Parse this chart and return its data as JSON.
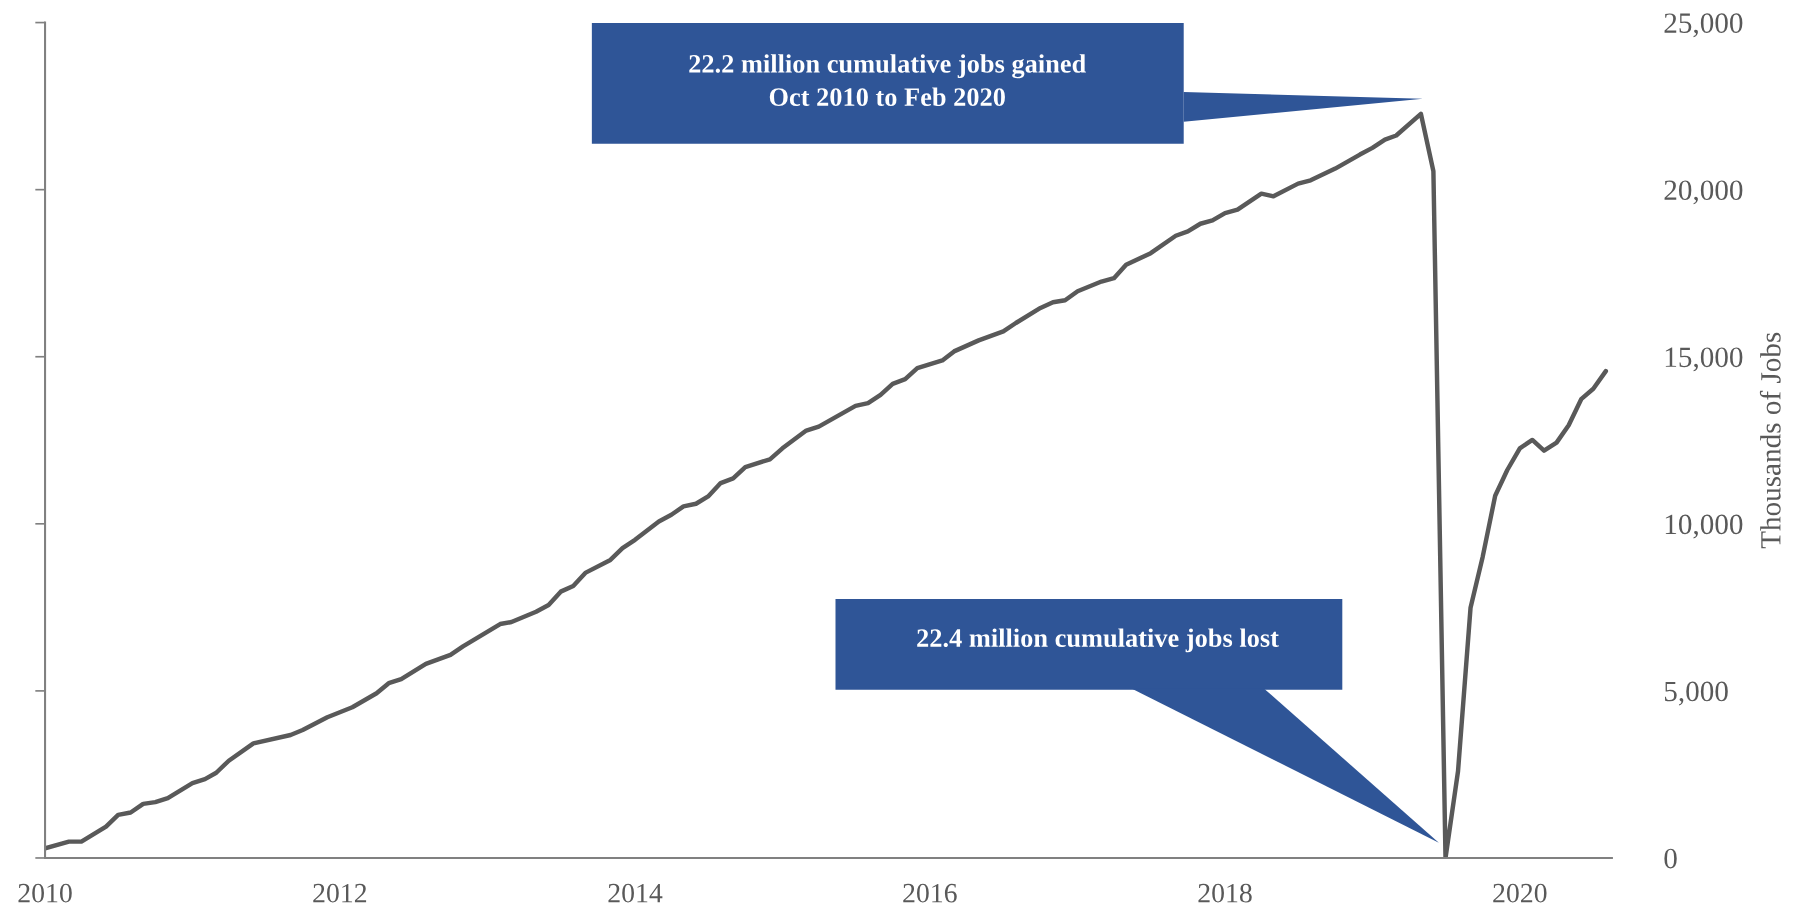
{
  "chart_data": {
    "type": "line",
    "x": [
      "2010-01",
      "2010-03",
      "2010-04",
      "2010-06",
      "2010-07",
      "2010-08",
      "2010-09",
      "2010-10",
      "2010-11",
      "2011-01",
      "2011-02",
      "2011-03",
      "2011-04",
      "2011-06",
      "2011-09",
      "2011-10",
      "2011-12",
      "2012-02",
      "2012-04",
      "2012-05",
      "2012-06",
      "2012-08",
      "2012-10",
      "2012-11",
      "2013-02",
      "2013-03",
      "2013-05",
      "2013-06",
      "2013-07",
      "2013-08",
      "2013-09",
      "2013-11",
      "2013-12",
      "2014-01",
      "2014-03",
      "2014-04",
      "2014-05",
      "2014-06",
      "2014-07",
      "2014-08",
      "2014-09",
      "2014-10",
      "2014-12",
      "2015-01",
      "2015-03",
      "2015-04",
      "2015-07",
      "2015-08",
      "2015-09",
      "2015-10",
      "2015-11",
      "2015-12",
      "2016-02",
      "2016-03",
      "2016-05",
      "2016-07",
      "2016-08",
      "2016-10",
      "2016-11",
      "2016-12",
      "2017-01",
      "2017-03",
      "2017-04",
      "2017-05",
      "2017-07",
      "2017-09",
      "2017-10",
      "2017-11",
      "2017-12",
      "2018-01",
      "2018-02",
      "2018-04",
      "2018-05",
      "2018-07",
      "2018-08",
      "2018-10",
      "2018-12",
      "2019-01",
      "2019-02",
      "2019-03",
      "2019-05",
      "2019-06",
      "2019-07",
      "2019-08",
      "2019-09",
      "2019-10",
      "2019-11",
      "2019-12",
      "2020-01",
      "2020-02",
      "2020-03",
      "2020-04",
      "2020-05",
      "2020-06",
      "2020-07",
      "2020-08"
    ],
    "series": [
      {
        "color": "#595959",
        "values": [
          290,
          490,
          490,
          940,
          1290,
          1360,
          1620,
          1670,
          1790,
          2240,
          2360,
          2550,
          2910,
          3430,
          3680,
          3830,
          4210,
          4510,
          4930,
          5230,
          5350,
          5810,
          6080,
          6330,
          7000,
          7060,
          7370,
          7570,
          7970,
          8140,
          8540,
          8920,
          9270,
          9520,
          10070,
          10270,
          10520,
          10600,
          10820,
          11220,
          11360,
          11700,
          11930,
          12260,
          12790,
          12910,
          13530,
          13610,
          13860,
          14190,
          14330,
          14660,
          14890,
          15160,
          15490,
          15760,
          16010,
          16460,
          16630,
          16690,
          16960,
          17250,
          17350,
          17750,
          18100,
          18620,
          18750,
          18980,
          19080,
          19300,
          19400,
          19880,
          19800,
          20180,
          20280,
          20630,
          21050,
          21250,
          21500,
          21620,
          22270,
          20550,
          0,
          2600,
          7490,
          9010,
          10840,
          11610,
          12260,
          12510,
          12190,
          12430,
          12950,
          13730,
          14040,
          14570
        ]
      }
    ],
    "xlim": [
      "2010-01",
      "2020-08-16"
    ],
    "xticks": [
      {
        "value": "2010",
        "label": "2010"
      },
      {
        "value": "2012",
        "label": "2012"
      },
      {
        "value": "2014",
        "label": "2014"
      },
      {
        "value": "2016",
        "label": "2016"
      },
      {
        "value": "2018",
        "label": "2018"
      },
      {
        "value": "2020",
        "label": "2020"
      }
    ],
    "ylim": [
      0,
      25000
    ],
    "yticks": [
      {
        "value": 0,
        "label": "0"
      },
      {
        "value": 5000,
        "label": "5,000"
      },
      {
        "value": 10000,
        "label": "10,000"
      },
      {
        "value": 15000,
        "label": "15,000"
      },
      {
        "value": 20000,
        "label": "20,000"
      },
      {
        "value": 25000,
        "label": "25,000"
      }
    ],
    "ylabel": "Thousands of Jobs",
    "annotations": [
      "22.2 million cumulative jobs gained\nOct 2010 to Feb 2020",
      "22.4 million cumulative jobs lost"
    ],
    "grid": false,
    "legend": false,
    "marker": "none",
    "line_style": "solid"
  }
}
